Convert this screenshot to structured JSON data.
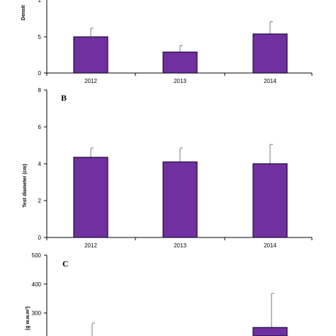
{
  "bar_color": "#7030a0",
  "chart_data": [
    {
      "type": "bar",
      "panel_label": "",
      "ylabel": "Densit",
      "categories": [
        "2012",
        "2013",
        "2014"
      ],
      "values": [
        5.0,
        2.9,
        5.4
      ],
      "errors": [
        1.2,
        0.9,
        1.7
      ],
      "yticks": [
        0,
        5
      ],
      "ytick_labels": [
        "0",
        "5"
      ],
      "top_partial_label": "1",
      "ylim": [
        0,
        10
      ],
      "grid": false
    },
    {
      "type": "bar",
      "panel_label": "B",
      "ylabel": "Test diameter (cm)",
      "categories": [
        "2012",
        "2013",
        "2014"
      ],
      "values": [
        4.35,
        4.1,
        4.0
      ],
      "errors": [
        0.5,
        0.75,
        1.05
      ],
      "yticks": [
        0,
        2,
        4,
        6,
        8
      ],
      "ytick_labels": [
        "0",
        "2",
        "4",
        "6",
        "8"
      ],
      "ylim": [
        0,
        8
      ],
      "grid": false
    },
    {
      "type": "bar",
      "panel_label": "C",
      "ylabel": "(g w.w.m²)",
      "categories": [
        "2012",
        "2013",
        "2014"
      ],
      "values": [
        null,
        null,
        250
      ],
      "errors": [
        null,
        null,
        118
      ],
      "visible_error_tops": [
        265,
        null,
        368
      ],
      "yticks": [
        300,
        400,
        500
      ],
      "ytick_labels": [
        "300",
        "400",
        "500"
      ],
      "ylim": [
        0,
        500
      ],
      "grid": false
    }
  ]
}
